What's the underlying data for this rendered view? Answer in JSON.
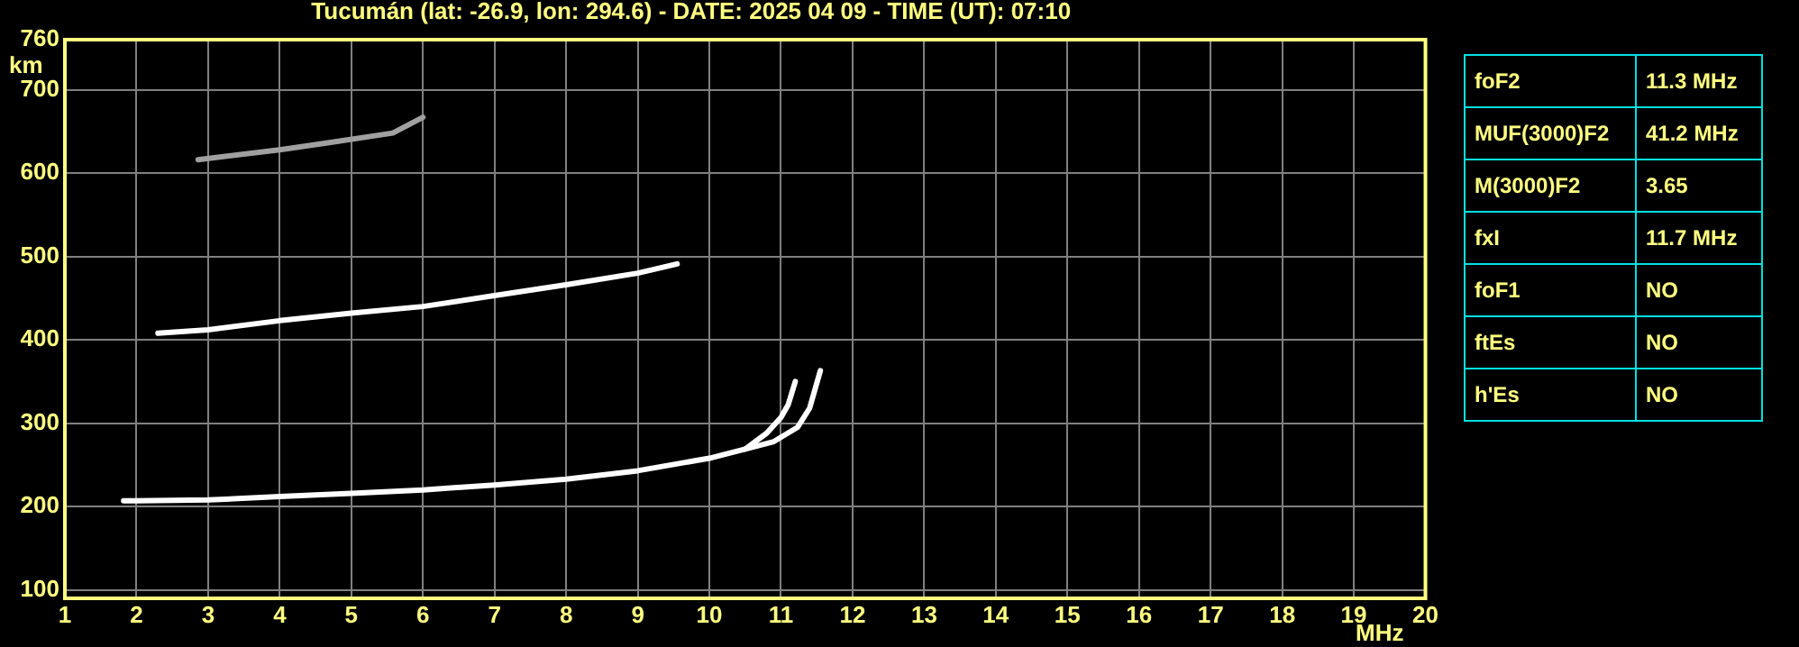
{
  "chart_data": [
    {
      "type": "line",
      "title": "Tucumán (lat: -26.9, lon: 294.6) - DATE: 2025 04 09 - TIME (UT): 07:10",
      "xlabel": "MHz",
      "ylabel": "km",
      "xlim": [
        1,
        20
      ],
      "ylim": [
        90,
        760
      ],
      "xticks": [
        1,
        2,
        3,
        4,
        5,
        6,
        7,
        8,
        9,
        10,
        11,
        12,
        13,
        14,
        15,
        16,
        17,
        18,
        19,
        20
      ],
      "yticks": [
        100,
        200,
        300,
        400,
        500,
        600,
        700,
        760
      ],
      "grid": true,
      "legend": false,
      "marker": "none",
      "line_style": "solid",
      "series": [
        {
          "color": "#ffffff",
          "x": [
            1.82,
            2,
            3,
            4,
            5,
            6,
            7,
            8,
            9,
            10,
            10.5,
            10.8,
            11,
            11.1,
            11.2
          ],
          "values": [
            207,
            207,
            208,
            212,
            216,
            220,
            226,
            233,
            243,
            258,
            269,
            288,
            307,
            322,
            350
          ]
        },
        {
          "color": "#ffffff",
          "x": [
            10.5,
            10.9,
            11.23,
            11.4,
            11.55
          ],
          "values": [
            269,
            278,
            295,
            318,
            363
          ]
        },
        {
          "color": "#ffffff",
          "x": [
            2.3,
            3,
            4,
            5,
            6,
            7,
            8,
            9,
            9.55
          ],
          "values": [
            408,
            412,
            423,
            432,
            440,
            453,
            466,
            480,
            491
          ]
        },
        {
          "color": "#a0a0a0",
          "x": [
            2.86,
            4,
            4.65,
            5.58,
            6
          ],
          "values": [
            616,
            628,
            636,
            648,
            667
          ]
        }
      ]
    },
    {
      "type": "other",
      "categories": [
        "foF2",
        "MUF(3000)F2",
        "M(3000)F2",
        "fxI",
        "foF1",
        "ftEs",
        "h'Es"
      ],
      "value_labels": [
        "11.3 MHz",
        "41.2 MHz",
        "3.65",
        "11.7 MHz",
        "NO",
        "NO",
        "NO"
      ]
    }
  ]
}
